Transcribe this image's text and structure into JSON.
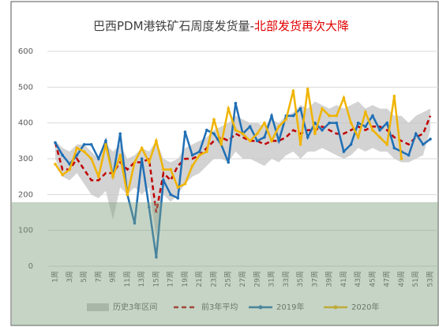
{
  "chart_data": {
    "type": "line",
    "title": "巴西PDM港铁矿石周度发货量-",
    "title_highlight": "北部发货再次大降",
    "categories": [
      "1周",
      null,
      "3周",
      null,
      "5周",
      null,
      "7周",
      null,
      "9周",
      null,
      "11周",
      null,
      "13周",
      null,
      "15周",
      null,
      "17周",
      null,
      "19周",
      null,
      "21周",
      null,
      "23周",
      null,
      "25周",
      null,
      "27周",
      null,
      "29周",
      null,
      "31周",
      null,
      "33周",
      null,
      "35周",
      null,
      "37周",
      null,
      "39周",
      null,
      "41周",
      null,
      "43周",
      null,
      "45周",
      null,
      "47周",
      null,
      "49周",
      null,
      "51周",
      null,
      "53周"
    ],
    "ylim": [
      0,
      600
    ],
    "yticks": [
      0,
      100,
      200,
      300,
      400,
      500,
      600
    ],
    "grid": true,
    "band": {
      "name": "历史3年区间",
      "color": "#c8c8c8",
      "high": [
        350,
        330,
        320,
        340,
        340,
        320,
        300,
        340,
        320,
        340,
        300,
        310,
        330,
        320,
        350,
        300,
        290,
        300,
        330,
        340,
        350,
        360,
        380,
        390,
        400,
        420,
        410,
        400,
        400,
        390,
        410,
        400,
        420,
        430,
        450,
        440,
        460,
        450,
        440,
        450,
        440,
        450,
        460,
        440,
        450,
        440,
        440,
        420,
        420,
        400,
        420,
        430,
        440
      ],
      "low": [
        300,
        250,
        240,
        260,
        230,
        200,
        190,
        210,
        130,
        220,
        200,
        220,
        200,
        220,
        80,
        200,
        180,
        200,
        230,
        250,
        260,
        280,
        300,
        300,
        290,
        320,
        300,
        300,
        290,
        280,
        300,
        290,
        310,
        320,
        300,
        320,
        320,
        330,
        320,
        310,
        300,
        310,
        330,
        320,
        330,
        320,
        320,
        300,
        290,
        290,
        300,
        310,
        380
      ]
    },
    "series": [
      {
        "name": "前3年平均",
        "color": "#c00000",
        "dashed": true,
        "marker": false,
        "values": [
          345,
          270,
          270,
          300,
          270,
          240,
          240,
          260,
          260,
          290,
          270,
          290,
          290,
          300,
          150,
          260,
          240,
          280,
          300,
          300,
          310,
          330,
          350,
          360,
          350,
          370,
          360,
          350,
          350,
          340,
          350,
          350,
          360,
          380,
          370,
          380,
          380,
          390,
          380,
          370,
          370,
          380,
          390,
          380,
          390,
          390,
          380,
          360,
          350,
          340,
          360,
          370,
          420
        ]
      },
      {
        "name": "2019年",
        "color": "#1f6fb5",
        "dashed": false,
        "marker": true,
        "values": [
          345,
          310,
          285,
          310,
          340,
          340,
          300,
          350,
          250,
          370,
          200,
          120,
          300,
          165,
          25,
          240,
          200,
          190,
          375,
          310,
          320,
          380,
          370,
          340,
          290,
          455,
          370,
          390,
          350,
          360,
          420,
          350,
          420,
          420,
          440,
          360,
          400,
          380,
          400,
          400,
          320,
          340,
          400,
          390,
          420,
          380,
          400,
          330,
          320,
          310,
          370,
          340,
          355
        ]
      },
      {
        "name": "2020年",
        "color": "#f0b400",
        "dashed": false,
        "marker": true,
        "values": [
          285,
          255,
          270,
          330,
          320,
          300,
          250,
          340,
          250,
          310,
          200,
          290,
          330,
          290,
          350,
          270,
          270,
          220,
          230,
          280,
          310,
          320,
          410,
          340,
          440,
          380,
          370,
          350,
          370,
          400,
          350,
          390,
          410,
          490,
          340,
          495,
          370,
          440,
          420,
          420,
          470,
          400,
          360,
          430,
          380,
          360,
          340,
          475,
          300,
          null,
          null,
          null,
          null
        ]
      }
    ]
  }
}
